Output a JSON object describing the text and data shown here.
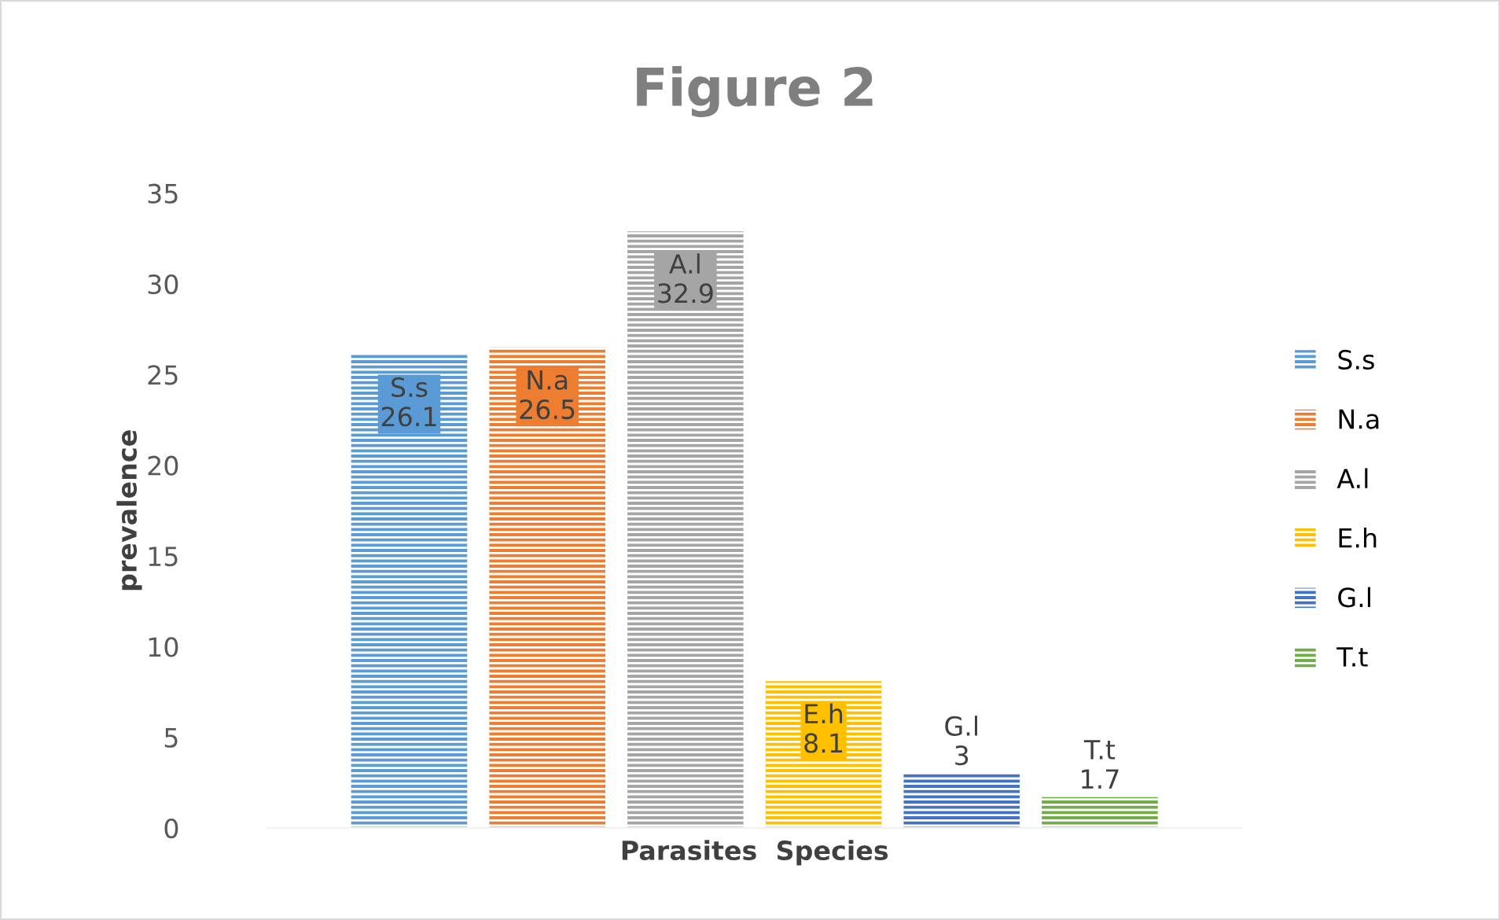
{
  "chart_data": {
    "type": "bar",
    "title": "Figure 2",
    "xlabel": "Parasites  Species",
    "ylabel": "prevalence",
    "categories": [
      null
    ],
    "series": [
      {
        "name": "S.s",
        "color": "#5b9bd5",
        "values": [
          26.1
        ]
      },
      {
        "name": "N.a",
        "color": "#ed7d31",
        "values": [
          26.5
        ]
      },
      {
        "name": "A.l",
        "color": "#a5a5a5",
        "values": [
          32.9
        ]
      },
      {
        "name": "E.h",
        "color": "#ffc000",
        "values": [
          8.1
        ]
      },
      {
        "name": "G.l",
        "color": "#4472c4",
        "values": [
          3
        ]
      },
      {
        "name": "T.t",
        "color": "#70ad47",
        "values": [
          1.7
        ]
      }
    ],
    "ylim": [
      0,
      35
    ],
    "yticks": [
      0,
      5,
      10,
      15,
      20,
      25,
      30,
      35
    ],
    "grid": false,
    "legend": "right",
    "data_labels": true
  }
}
